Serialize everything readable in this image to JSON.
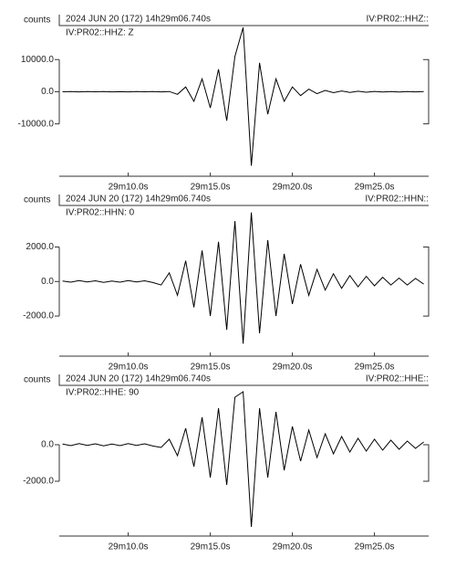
{
  "chart_data": [
    {
      "type": "line",
      "y_label": "counts",
      "header": "2024 JUN 20 (172)  14h29m06.740s",
      "channel": "IV:PR02::HHZ::",
      "subtitle": "IV:PR02::HHZ: Z",
      "xlim": [
        5.8,
        28.3
      ],
      "ylim": [
        -24000,
        20000
      ],
      "xticks": [
        {
          "value": 10,
          "label": "29m10.0s"
        },
        {
          "value": 15,
          "label": "29m15.0s"
        },
        {
          "value": 20,
          "label": "29m20.0s"
        },
        {
          "value": 25,
          "label": "29m25.0s"
        }
      ],
      "yticks": [
        {
          "value": 10000,
          "label": "10000.0"
        },
        {
          "value": 0,
          "label": "0.0"
        },
        {
          "value": -10000,
          "label": "-10000.0"
        }
      ],
      "color": "#000000",
      "x": [
        6,
        6.5,
        7,
        7.5,
        8,
        8.5,
        9,
        9.5,
        10,
        10.5,
        11,
        11.5,
        12,
        12.5,
        13,
        13.5,
        14,
        14.5,
        15,
        15.5,
        16,
        16.5,
        17,
        17.5,
        18,
        18.5,
        19,
        19.5,
        20,
        20.5,
        21,
        21.5,
        22,
        22.5,
        23,
        23.5,
        24,
        24.5,
        25,
        25.5,
        26,
        26.5,
        27,
        27.5,
        28
      ],
      "values": [
        0,
        50,
        -30,
        40,
        -20,
        30,
        -40,
        20,
        -30,
        40,
        -20,
        30,
        -50,
        60,
        -800,
        1500,
        -3000,
        4000,
        -5000,
        7000,
        -9000,
        11000,
        20000,
        -23000,
        9000,
        -7000,
        4000,
        -3000,
        1500,
        -1200,
        800,
        -600,
        400,
        -300,
        250,
        -200,
        150,
        -150,
        100,
        -100,
        80,
        -80,
        60,
        -50,
        40
      ]
    },
    {
      "type": "line",
      "y_label": "counts",
      "header": "2024 JUN 20 (172)  14h29m06.740s",
      "channel": "IV:PR02::HHN::",
      "subtitle": "IV:PR02::HHN: 0",
      "xlim": [
        5.8,
        28.3
      ],
      "ylim": [
        -3900,
        4300
      ],
      "xticks": [
        {
          "value": 10,
          "label": "29m10.0s"
        },
        {
          "value": 15,
          "label": "29m15.0s"
        },
        {
          "value": 20,
          "label": "29m20.0s"
        },
        {
          "value": 25,
          "label": "29m25.0s"
        }
      ],
      "yticks": [
        {
          "value": 2000,
          "label": "2000.0"
        },
        {
          "value": 0,
          "label": "0.0"
        },
        {
          "value": -2000,
          "label": "-2000.0"
        }
      ],
      "color": "#000000",
      "x": [
        6,
        6.5,
        7,
        7.5,
        8,
        8.5,
        9,
        9.5,
        10,
        10.5,
        11,
        11.5,
        12,
        12.5,
        13,
        13.5,
        14,
        14.5,
        15,
        15.5,
        16,
        16.5,
        17,
        17.5,
        18,
        18.5,
        19,
        19.5,
        20,
        20.5,
        21,
        21.5,
        22,
        22.5,
        23,
        23.5,
        24,
        24.5,
        25,
        25.5,
        26,
        26.5,
        27,
        27.5,
        28
      ],
      "values": [
        30,
        -40,
        50,
        -30,
        40,
        -50,
        30,
        -40,
        50,
        -30,
        40,
        -60,
        -200,
        500,
        -800,
        1200,
        -1500,
        1800,
        -2000,
        2300,
        -2800,
        3500,
        -3600,
        4000,
        -3000,
        2400,
        -2000,
        1600,
        -1300,
        1000,
        -800,
        700,
        -500,
        450,
        -400,
        350,
        -300,
        300,
        -250,
        250,
        -200,
        200,
        -200,
        180,
        -150
      ]
    },
    {
      "type": "line",
      "y_label": "counts",
      "header": "2024 JUN 20 (172)  14h29m06.740s",
      "channel": "IV:PR02::HHE::",
      "subtitle": "IV:PR02::HHE: 90",
      "xlim": [
        5.8,
        28.3
      ],
      "ylim": [
        -4600,
        3150
      ],
      "xticks": [
        {
          "value": 10,
          "label": "29m10.0s"
        },
        {
          "value": 15,
          "label": "29m15.0s"
        },
        {
          "value": 20,
          "label": "29m20.0s"
        },
        {
          "value": 25,
          "label": "29m25.0s"
        }
      ],
      "yticks": [
        {
          "value": 0,
          "label": "0.0"
        },
        {
          "value": -2000,
          "label": "-2000.0"
        }
      ],
      "color": "#000000",
      "x": [
        6,
        6.5,
        7,
        7.5,
        8,
        8.5,
        9,
        9.5,
        10,
        10.5,
        11,
        11.5,
        12,
        12.5,
        13,
        13.5,
        14,
        14.5,
        15,
        15.5,
        16,
        16.5,
        17,
        17.5,
        18,
        18.5,
        19,
        19.5,
        20,
        20.5,
        21,
        21.5,
        22,
        22.5,
        23,
        23.5,
        24,
        24.5,
        25,
        25.5,
        26,
        26.5,
        27,
        27.5,
        28
      ],
      "values": [
        40,
        -50,
        60,
        -40,
        50,
        -60,
        40,
        -50,
        60,
        -40,
        50,
        -70,
        -150,
        300,
        -600,
        900,
        -1200,
        1500,
        -1800,
        2000,
        -2200,
        2600,
        2900,
        -4500,
        2000,
        -1800,
        1800,
        -1400,
        1000,
        -900,
        800,
        -700,
        600,
        -500,
        450,
        -400,
        350,
        -350,
        300,
        -300,
        250,
        -250,
        200,
        -200,
        150
      ]
    }
  ]
}
